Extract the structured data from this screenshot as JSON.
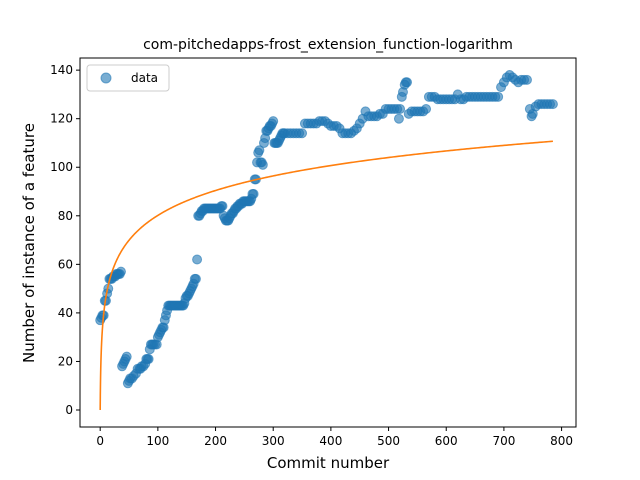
{
  "chart_data": {
    "type": "scatter",
    "title": "com-pitchedapps-frost_extension_function-logarithm",
    "xlabel": "Commit number",
    "ylabel": "Number of instance of a feature",
    "xlim": [
      -35,
      825
    ],
    "ylim": [
      -7,
      145
    ],
    "xticks": [
      0,
      100,
      200,
      300,
      400,
      500,
      600,
      700,
      800
    ],
    "yticks": [
      0,
      20,
      40,
      60,
      80,
      100,
      120,
      140
    ],
    "grid": false,
    "legend": {
      "position": "upper-left",
      "entries": [
        "data"
      ]
    },
    "colors": {
      "data": "#1f77b4",
      "fit": "#ff7f0e"
    },
    "series": [
      {
        "name": "data",
        "kind": "scatter",
        "points": [
          [
            0,
            37
          ],
          [
            2,
            38
          ],
          [
            4,
            39
          ],
          [
            6,
            39
          ],
          [
            8,
            45
          ],
          [
            10,
            45
          ],
          [
            12,
            48
          ],
          [
            14,
            50
          ],
          [
            16,
            54
          ],
          [
            18,
            54
          ],
          [
            20,
            54
          ],
          [
            22,
            55
          ],
          [
            24,
            55
          ],
          [
            26,
            55
          ],
          [
            28,
            56
          ],
          [
            30,
            56
          ],
          [
            32,
            56
          ],
          [
            34,
            56
          ],
          [
            36,
            57
          ],
          [
            38,
            18
          ],
          [
            40,
            19
          ],
          [
            42,
            20
          ],
          [
            44,
            21
          ],
          [
            46,
            22
          ],
          [
            48,
            11
          ],
          [
            50,
            12
          ],
          [
            52,
            13
          ],
          [
            55,
            13
          ],
          [
            58,
            14
          ],
          [
            62,
            15
          ],
          [
            65,
            17
          ],
          [
            68,
            17
          ],
          [
            70,
            17
          ],
          [
            72,
            18
          ],
          [
            75,
            18
          ],
          [
            78,
            19
          ],
          [
            80,
            21
          ],
          [
            82,
            21
          ],
          [
            84,
            21
          ],
          [
            86,
            25
          ],
          [
            88,
            27
          ],
          [
            90,
            27
          ],
          [
            92,
            27
          ],
          [
            95,
            27
          ],
          [
            98,
            27
          ],
          [
            100,
            30
          ],
          [
            102,
            31
          ],
          [
            104,
            32
          ],
          [
            106,
            33
          ],
          [
            108,
            34
          ],
          [
            110,
            34
          ],
          [
            112,
            37
          ],
          [
            114,
            39
          ],
          [
            116,
            41
          ],
          [
            118,
            43
          ],
          [
            120,
            43
          ],
          [
            122,
            43
          ],
          [
            124,
            43
          ],
          [
            126,
            43
          ],
          [
            128,
            43
          ],
          [
            130,
            43
          ],
          [
            132,
            43
          ],
          [
            134,
            43
          ],
          [
            136,
            43
          ],
          [
            138,
            43
          ],
          [
            140,
            43
          ],
          [
            142,
            43
          ],
          [
            144,
            43
          ],
          [
            146,
            44
          ],
          [
            148,
            46
          ],
          [
            150,
            47
          ],
          [
            152,
            47
          ],
          [
            154,
            48
          ],
          [
            156,
            49
          ],
          [
            158,
            50
          ],
          [
            160,
            51
          ],
          [
            162,
            52
          ],
          [
            164,
            54
          ],
          [
            166,
            54
          ],
          [
            168,
            62
          ],
          [
            170,
            80
          ],
          [
            172,
            80
          ],
          [
            174,
            81
          ],
          [
            176,
            82
          ],
          [
            178,
            82
          ],
          [
            180,
            83
          ],
          [
            182,
            83
          ],
          [
            184,
            83
          ],
          [
            186,
            83
          ],
          [
            188,
            83
          ],
          [
            190,
            83
          ],
          [
            192,
            83
          ],
          [
            194,
            83
          ],
          [
            196,
            83
          ],
          [
            198,
            83
          ],
          [
            200,
            83
          ],
          [
            202,
            83
          ],
          [
            204,
            83
          ],
          [
            206,
            83
          ],
          [
            208,
            83
          ],
          [
            210,
            84
          ],
          [
            212,
            84
          ],
          [
            214,
            80
          ],
          [
            216,
            79
          ],
          [
            218,
            78
          ],
          [
            220,
            78
          ],
          [
            222,
            78
          ],
          [
            224,
            79
          ],
          [
            226,
            80
          ],
          [
            228,
            81
          ],
          [
            230,
            81
          ],
          [
            232,
            82
          ],
          [
            234,
            83
          ],
          [
            236,
            83
          ],
          [
            238,
            84
          ],
          [
            240,
            84
          ],
          [
            242,
            85
          ],
          [
            244,
            85
          ],
          [
            246,
            85
          ],
          [
            248,
            86
          ],
          [
            250,
            86
          ],
          [
            252,
            86
          ],
          [
            254,
            86
          ],
          [
            256,
            86
          ],
          [
            258,
            86
          ],
          [
            260,
            86
          ],
          [
            262,
            87
          ],
          [
            264,
            89
          ],
          [
            266,
            89
          ],
          [
            268,
            95
          ],
          [
            270,
            95
          ],
          [
            272,
            102
          ],
          [
            274,
            106
          ],
          [
            276,
            107
          ],
          [
            278,
            102
          ],
          [
            280,
            102
          ],
          [
            282,
            101
          ],
          [
            284,
            110
          ],
          [
            286,
            112
          ],
          [
            288,
            115
          ],
          [
            290,
            115
          ],
          [
            292,
            116
          ],
          [
            294,
            117
          ],
          [
            296,
            117
          ],
          [
            298,
            118
          ],
          [
            300,
            119
          ],
          [
            302,
            110
          ],
          [
            304,
            110
          ],
          [
            306,
            110
          ],
          [
            308,
            110
          ],
          [
            310,
            111
          ],
          [
            312,
            112
          ],
          [
            314,
            113
          ],
          [
            316,
            114
          ],
          [
            318,
            114
          ],
          [
            320,
            114
          ],
          [
            325,
            114
          ],
          [
            330,
            114
          ],
          [
            335,
            114
          ],
          [
            340,
            114
          ],
          [
            345,
            114
          ],
          [
            350,
            114
          ],
          [
            355,
            118
          ],
          [
            360,
            118
          ],
          [
            365,
            118
          ],
          [
            370,
            118
          ],
          [
            375,
            118
          ],
          [
            380,
            119
          ],
          [
            385,
            119
          ],
          [
            390,
            119
          ],
          [
            395,
            118
          ],
          [
            400,
            117
          ],
          [
            405,
            117
          ],
          [
            410,
            117
          ],
          [
            415,
            116
          ],
          [
            420,
            114
          ],
          [
            425,
            114
          ],
          [
            430,
            114
          ],
          [
            435,
            114
          ],
          [
            440,
            115
          ],
          [
            445,
            116
          ],
          [
            450,
            118
          ],
          [
            455,
            120
          ],
          [
            460,
            123
          ],
          [
            465,
            121
          ],
          [
            470,
            121
          ],
          [
            475,
            121
          ],
          [
            480,
            121
          ],
          [
            485,
            122
          ],
          [
            490,
            122
          ],
          [
            495,
            124
          ],
          [
            500,
            124
          ],
          [
            505,
            124
          ],
          [
            510,
            124
          ],
          [
            515,
            124
          ],
          [
            518,
            120
          ],
          [
            520,
            124
          ],
          [
            523,
            129
          ],
          [
            525,
            131
          ],
          [
            528,
            134
          ],
          [
            530,
            135
          ],
          [
            532,
            135
          ],
          [
            535,
            122
          ],
          [
            540,
            123
          ],
          [
            545,
            123
          ],
          [
            550,
            123
          ],
          [
            555,
            123
          ],
          [
            560,
            123
          ],
          [
            565,
            124
          ],
          [
            570,
            129
          ],
          [
            575,
            129
          ],
          [
            580,
            129
          ],
          [
            585,
            128
          ],
          [
            590,
            128
          ],
          [
            595,
            128
          ],
          [
            600,
            128
          ],
          [
            605,
            128
          ],
          [
            610,
            128
          ],
          [
            615,
            128
          ],
          [
            620,
            130
          ],
          [
            625,
            128
          ],
          [
            630,
            128
          ],
          [
            635,
            129
          ],
          [
            640,
            129
          ],
          [
            645,
            129
          ],
          [
            650,
            129
          ],
          [
            655,
            129
          ],
          [
            660,
            129
          ],
          [
            665,
            129
          ],
          [
            670,
            129
          ],
          [
            675,
            129
          ],
          [
            680,
            129
          ],
          [
            685,
            129
          ],
          [
            690,
            129
          ],
          [
            695,
            133
          ],
          [
            700,
            135
          ],
          [
            705,
            137
          ],
          [
            710,
            138
          ],
          [
            715,
            137
          ],
          [
            720,
            136
          ],
          [
            725,
            135
          ],
          [
            730,
            136
          ],
          [
            735,
            136
          ],
          [
            740,
            136
          ],
          [
            745,
            124
          ],
          [
            748,
            121
          ],
          [
            750,
            122
          ],
          [
            755,
            125
          ],
          [
            760,
            126
          ],
          [
            765,
            126
          ],
          [
            770,
            126
          ],
          [
            775,
            126
          ],
          [
            780,
            126
          ],
          [
            785,
            126
          ]
        ]
      },
      {
        "kind": "line",
        "formula": "y = a*ln(1 + b*x)",
        "a": 14.85,
        "b": 2.2,
        "x_range": [
          0,
          785
        ]
      }
    ]
  }
}
